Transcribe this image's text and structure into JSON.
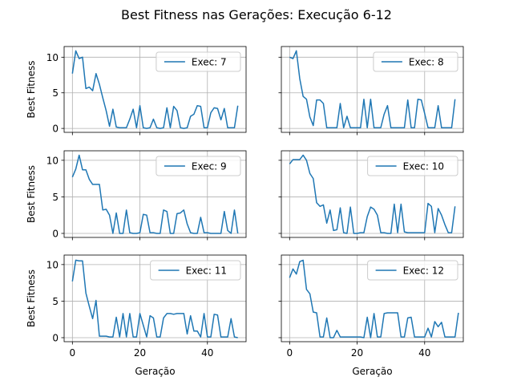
{
  "figure": {
    "title": "Best Fitness nas Gerações: Execução 6-12"
  },
  "colors": {
    "line": "#1f77b4",
    "grid": "#b0b0b0",
    "axes": "#000000",
    "legend_border": "#cccccc"
  },
  "chart_data": [
    {
      "type": "line",
      "panel": "top-left",
      "ylabel": "Best Fitness",
      "xlabel": "",
      "xlim": [
        -2.45,
        51.45
      ],
      "ylim": [
        -0.55,
        11.5
      ],
      "xticks": [
        0,
        20,
        40
      ],
      "yticks": [
        0,
        5,
        10
      ],
      "show_xticklabels": false,
      "show_yticklabels": true,
      "grid": true,
      "legend_position": "top-right",
      "series": [
        {
          "name": "Exec: 7",
          "x_start": 0,
          "x_step": 1,
          "values": [
            7.7,
            10.9,
            9.8,
            10.0,
            5.6,
            5.8,
            5.3,
            7.7,
            6.2,
            4.3,
            2.5,
            0.3,
            2.7,
            0.2,
            0.1,
            0.1,
            0.1,
            1.3,
            2.7,
            0.1,
            3.2,
            0.1,
            0.0,
            0.1,
            1.3,
            0.1,
            0.0,
            0.1,
            2.9,
            0.1,
            3.1,
            2.5,
            0.1,
            0.0,
            0.1,
            1.7,
            2.0,
            3.2,
            3.1,
            0.1,
            0.1,
            2.2,
            2.9,
            2.8,
            1.2,
            2.8,
            0.1,
            0.1,
            0.1,
            3.2
          ]
        }
      ]
    },
    {
      "type": "line",
      "panel": "top-right",
      "ylabel": "",
      "xlabel": "",
      "xlim": [
        -2.45,
        51.45
      ],
      "ylim": [
        -0.55,
        11.5
      ],
      "xticks": [
        0,
        20,
        40
      ],
      "yticks": [
        0,
        5,
        10
      ],
      "show_xticklabels": false,
      "show_yticklabels": false,
      "grid": true,
      "legend_position": "top-right",
      "series": [
        {
          "name": "Exec: 8",
          "x_start": 0,
          "x_step": 1,
          "values": [
            10.0,
            9.8,
            10.9,
            7.0,
            4.5,
            4.1,
            1.6,
            0.4,
            4.0,
            4.0,
            3.5,
            0.1,
            0.1,
            0.1,
            0.1,
            3.5,
            0.1,
            1.7,
            0.1,
            0.1,
            0.1,
            0.1,
            4.1,
            0.1,
            4.1,
            0.1,
            0.1,
            0.1,
            2.0,
            3.2,
            0.1,
            0.1,
            0.1,
            0.1,
            0.1,
            4.0,
            0.1,
            0.1,
            4.1,
            4.0,
            2.1,
            0.1,
            0.1,
            0.1,
            3.2,
            0.1,
            0.1,
            0.1,
            0.1,
            4.1
          ]
        }
      ]
    },
    {
      "type": "line",
      "panel": "middle-left",
      "ylabel": "Best Fitness",
      "xlabel": "",
      "xlim": [
        -2.45,
        51.45
      ],
      "ylim": [
        -0.55,
        11.3
      ],
      "xticks": [
        0,
        20,
        40
      ],
      "yticks": [
        0,
        5,
        10
      ],
      "show_xticklabels": false,
      "show_yticklabels": true,
      "grid": true,
      "legend_position": "top-right",
      "series": [
        {
          "name": "Exec: 9",
          "x_start": 0,
          "x_step": 1,
          "values": [
            7.7,
            8.8,
            10.7,
            8.7,
            8.7,
            7.4,
            6.7,
            6.7,
            6.7,
            3.2,
            3.3,
            2.5,
            0.0,
            2.8,
            0.0,
            0.0,
            3.2,
            0.1,
            0.0,
            0.0,
            0.1,
            2.6,
            2.5,
            0.1,
            0.1,
            0.0,
            0.0,
            3.2,
            3.0,
            0.0,
            0.0,
            2.7,
            2.8,
            3.2,
            1.3,
            0.1,
            0.0,
            0.0,
            2.2,
            0.1,
            0.1,
            0.0,
            0.0,
            0.0,
            0.0,
            3.0,
            0.4,
            0.0,
            3.2,
            0.0
          ]
        }
      ]
    },
    {
      "type": "line",
      "panel": "middle-right",
      "ylabel": "",
      "xlabel": "",
      "xlim": [
        -2.45,
        51.45
      ],
      "ylim": [
        -0.55,
        11.3
      ],
      "xticks": [
        0,
        20,
        40
      ],
      "yticks": [
        0,
        5,
        10
      ],
      "show_xticklabels": false,
      "show_yticklabels": false,
      "grid": true,
      "legend_position": "top-right",
      "series": [
        {
          "name": "Exec: 10",
          "x_start": 0,
          "x_step": 1,
          "values": [
            9.5,
            10.1,
            10.1,
            10.1,
            10.7,
            10.0,
            8.2,
            7.5,
            4.2,
            3.7,
            3.9,
            1.4,
            3.2,
            0.4,
            0.5,
            3.5,
            0.1,
            0.0,
            3.6,
            0.0,
            0.0,
            0.1,
            0.1,
            2.3,
            3.6,
            3.3,
            2.5,
            0.1,
            0.1,
            0.0,
            0.0,
            4.0,
            0.1,
            4.0,
            0.2,
            0.1,
            0.1,
            0.1,
            0.1,
            0.1,
            0.1,
            4.1,
            3.7,
            0.1,
            3.4,
            2.5,
            1.2,
            0.1,
            0.1,
            3.7
          ]
        }
      ]
    },
    {
      "type": "line",
      "panel": "bottom-left",
      "ylabel": "Best Fitness",
      "xlabel": "Geração",
      "xlim": [
        -2.45,
        51.45
      ],
      "ylim": [
        -0.55,
        11.3
      ],
      "xticks": [
        0,
        20,
        40
      ],
      "yticks": [
        0,
        5,
        10
      ],
      "show_xticklabels": true,
      "show_yticklabels": true,
      "grid": true,
      "legend_position": "top-right",
      "series": [
        {
          "name": "Exec: 11",
          "x_start": 0,
          "x_step": 1,
          "values": [
            7.7,
            10.6,
            10.5,
            10.5,
            6.1,
            4.3,
            2.6,
            5.1,
            0.2,
            0.2,
            0.2,
            0.1,
            0.1,
            2.8,
            0.1,
            3.3,
            0.1,
            3.3,
            0.1,
            0.1,
            3.3,
            1.7,
            0.1,
            3.0,
            2.7,
            0.1,
            0.1,
            2.7,
            3.3,
            3.3,
            3.2,
            3.3,
            3.3,
            3.3,
            0.5,
            3.0,
            0.9,
            0.9,
            0.1,
            3.3,
            0.1,
            0.1,
            3.2,
            3.1,
            0.1,
            0.1,
            0.1,
            2.6,
            0.1,
            0.0
          ]
        }
      ]
    },
    {
      "type": "line",
      "panel": "bottom-right",
      "ylabel": "",
      "xlabel": "Geração",
      "xlim": [
        -2.45,
        51.45
      ],
      "ylim": [
        -0.55,
        11.3
      ],
      "xticks": [
        0,
        20,
        40
      ],
      "yticks": [
        0,
        5,
        10
      ],
      "show_xticklabels": true,
      "show_yticklabels": false,
      "grid": true,
      "legend_position": "top-right",
      "series": [
        {
          "name": "Exec: 12",
          "x_start": 0,
          "x_step": 1,
          "values": [
            8.2,
            9.4,
            8.7,
            10.4,
            10.6,
            6.6,
            6.0,
            3.5,
            3.4,
            0.1,
            0.1,
            2.7,
            0.0,
            0.0,
            1.0,
            0.1,
            0.1,
            0.1,
            0.1,
            0.1,
            0.1,
            0.1,
            0.0,
            2.8,
            0.0,
            3.3,
            0.1,
            0.1,
            3.3,
            3.4,
            3.4,
            3.4,
            3.4,
            0.1,
            0.1,
            2.7,
            2.8,
            0.1,
            0.1,
            0.1,
            0.1,
            1.3,
            0.1,
            2.2,
            1.5,
            2.1,
            0.1,
            0.1,
            0.1,
            0.1,
            3.4
          ]
        }
      ]
    }
  ]
}
